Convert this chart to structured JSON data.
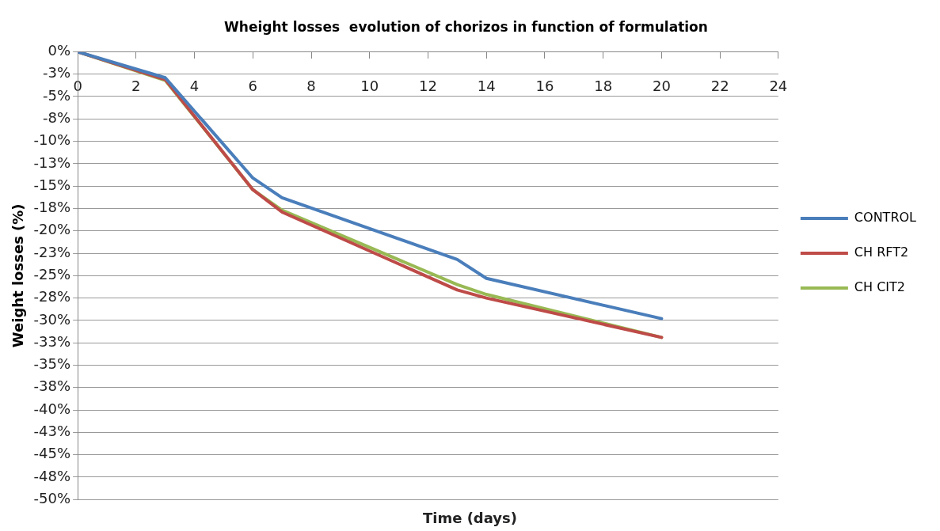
{
  "chart_data": {
    "type": "line",
    "title": "Wheight losses  evolution of chorizos in function of formulation",
    "xlabel": "Time (days)",
    "ylabel": "Weight losses (%)",
    "x": [
      0,
      3,
      6,
      7,
      13,
      14,
      20
    ],
    "series": [
      {
        "name": "CONTROL",
        "color": "#4a7ebb",
        "values": [
          0,
          -2.9,
          -14.1,
          -16.3,
          -23.2,
          -25.3,
          -29.8
        ]
      },
      {
        "name": "CH RFT2",
        "color": "#be4b48",
        "values": [
          0,
          -3.1,
          -15.4,
          -17.9,
          -26.6,
          -27.5,
          -31.9
        ]
      },
      {
        "name": "CH CIT2",
        "color": "#98b954",
        "values": [
          0,
          -3.2,
          -15.4,
          -17.7,
          -26.0,
          -27.1,
          -31.9
        ]
      }
    ],
    "xlim": [
      0,
      24
    ],
    "xticks": [
      0,
      2,
      4,
      6,
      8,
      10,
      12,
      14,
      16,
      18,
      20,
      22,
      24
    ],
    "ylim": [
      -50,
      0
    ],
    "yticks": [
      {
        "value": 0,
        "label": "0%"
      },
      {
        "value": -2.5,
        "label": "-3%"
      },
      {
        "value": -5,
        "label": "-5%"
      },
      {
        "value": -7.5,
        "label": "-8%"
      },
      {
        "value": -10,
        "label": "-10%"
      },
      {
        "value": -12.5,
        "label": "-13%"
      },
      {
        "value": -15,
        "label": "-15%"
      },
      {
        "value": -17.5,
        "label": "-18%"
      },
      {
        "value": -20,
        "label": "-20%"
      },
      {
        "value": -22.5,
        "label": "-23%"
      },
      {
        "value": -25,
        "label": "-25%"
      },
      {
        "value": -27.5,
        "label": "-28%"
      },
      {
        "value": -30,
        "label": "-30%"
      },
      {
        "value": -32.5,
        "label": "-33%"
      },
      {
        "value": -35,
        "label": "-35%"
      },
      {
        "value": -37.5,
        "label": "-38%"
      },
      {
        "value": -40,
        "label": "-40%"
      },
      {
        "value": -42.5,
        "label": "-43%"
      },
      {
        "value": -45,
        "label": "-45%"
      },
      {
        "value": -47.5,
        "label": "-48%"
      },
      {
        "value": -50,
        "label": "-50%"
      }
    ],
    "grid": "y",
    "legend": "right",
    "marker": "none",
    "line_style": "solid"
  }
}
